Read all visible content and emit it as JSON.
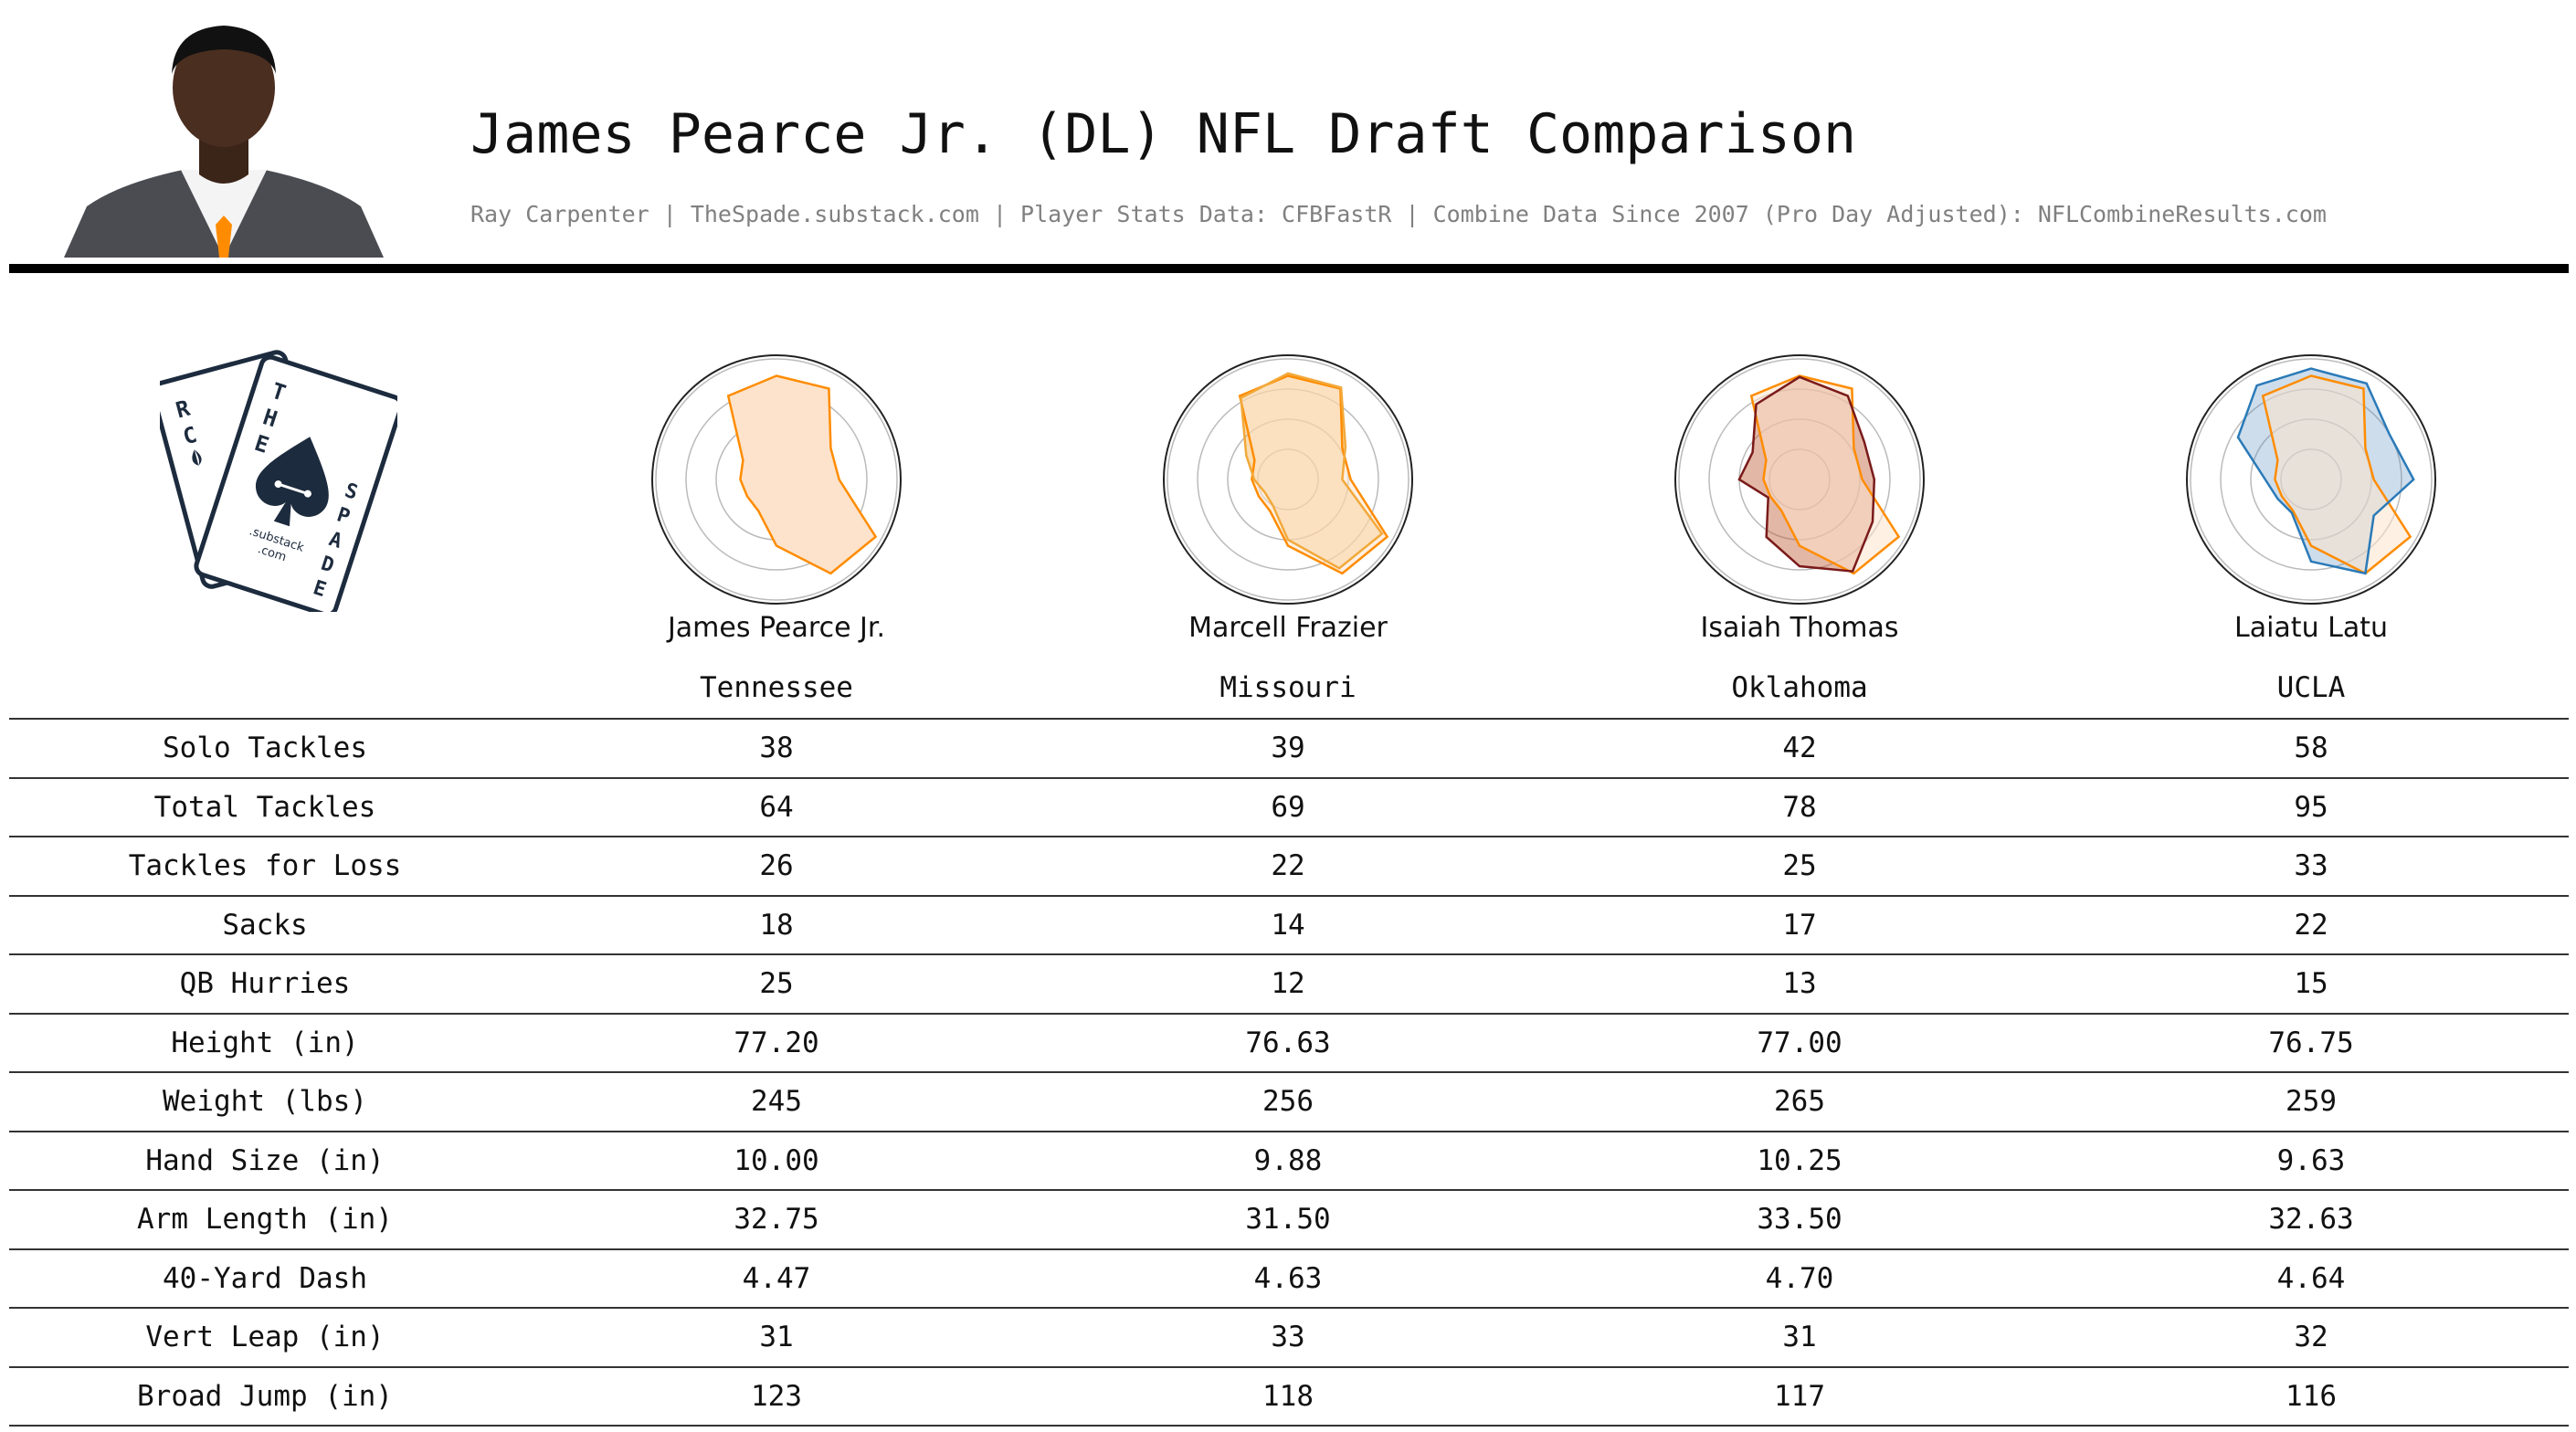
{
  "header": {
    "title": "James Pearce Jr. (DL) NFL Draft Comparison",
    "subtitle": "Ray Carpenter | TheSpade.substack.com | Player Stats Data: CFBFastR | Combine Data Since 2007 (Pro Day Adjusted): NFLCombineResults.com"
  },
  "logo": {
    "letters_back": [
      "R",
      "C"
    ],
    "letters_front_top": [
      "T",
      "H",
      "E"
    ],
    "letters_front_side": [
      "S",
      "P",
      "A",
      "D",
      "E"
    ],
    "caption_lines": [
      ".substack",
      ".com"
    ]
  },
  "colors": {
    "target_line": "#ff8c00",
    "target_fill": "#fde3cc",
    "frazier_line": "#f2a93b",
    "thomas_line": "#7a1a1a",
    "latu_line": "#2a7ab8",
    "grid": "#bbbbbb",
    "logo_ink": "#1d2b3e"
  },
  "chart_data": {
    "type": "radar",
    "target": "James Pearce Jr.",
    "axes": [
      "Solo Tackles",
      "Total Tackles",
      "Tackles for Loss",
      "Sacks",
      "QB Hurries",
      "Height (in)",
      "Weight (lbs)",
      "Hand Size (in)",
      "Arm Length (in)",
      "40-Yard Dash",
      "Vert Leap (in)",
      "Broad Jump (in)"
    ],
    "grid_rings": 4,
    "target_profile": [
      0.86,
      0.87,
      0.52,
      0.52,
      0.95,
      0.9,
      0.55,
      0.3,
      0.28,
      0.3,
      0.32,
      0.8
    ],
    "players": [
      {
        "name": "James Pearce Jr.",
        "school": "Tennessee",
        "color": "#ff8c00",
        "fill": "#fde3cc",
        "fill_opacity": 1.0,
        "profile": [
          0.86,
          0.87,
          0.52,
          0.52,
          0.95,
          0.9,
          0.55,
          0.3,
          0.28,
          0.3,
          0.32,
          0.8
        ],
        "stats": [
          "38",
          "64",
          "26",
          "18",
          "25",
          "77.20",
          "245",
          "10.00",
          "32.75",
          "4.47",
          "31",
          "123"
        ]
      },
      {
        "name": "Marcell Frazier",
        "school": "Missouri",
        "color": "#f2a93b",
        "fill": "#f2a93b",
        "fill_opacity": 0.4,
        "profile": [
          0.88,
          0.88,
          0.55,
          0.45,
          0.9,
          0.85,
          0.5,
          0.25,
          0.22,
          0.28,
          0.4,
          0.78
        ],
        "stats": [
          "39",
          "69",
          "22",
          "14",
          "12",
          "76.63",
          "256",
          "9.88",
          "31.50",
          "4.63",
          "33",
          "118"
        ]
      },
      {
        "name": "Isaiah Thomas",
        "school": "Oklahoma",
        "color": "#7a1a1a",
        "fill": "#c0603a",
        "fill_opacity": 0.45,
        "profile": [
          0.85,
          0.8,
          0.62,
          0.62,
          0.7,
          0.88,
          0.72,
          0.55,
          0.3,
          0.5,
          0.45,
          0.72
        ],
        "stats": [
          "42",
          "78",
          "25",
          "17",
          "13",
          "77.00",
          "265",
          "10.25",
          "33.50",
          "4.70",
          "31",
          "117"
        ]
      },
      {
        "name": "Laiatu Latu",
        "school": "UCLA",
        "color": "#2a7ab8",
        "fill": "#5a8fc0",
        "fill_opacity": 0.3,
        "profile": [
          0.92,
          0.92,
          0.75,
          0.85,
          0.6,
          0.9,
          0.68,
          0.32,
          0.32,
          0.38,
          0.7,
          0.9
        ],
        "stats": [
          "58",
          "95",
          "33",
          "22",
          "15",
          "76.75",
          "259",
          "9.63",
          "32.63",
          "4.64",
          "32",
          "116"
        ]
      }
    ]
  }
}
